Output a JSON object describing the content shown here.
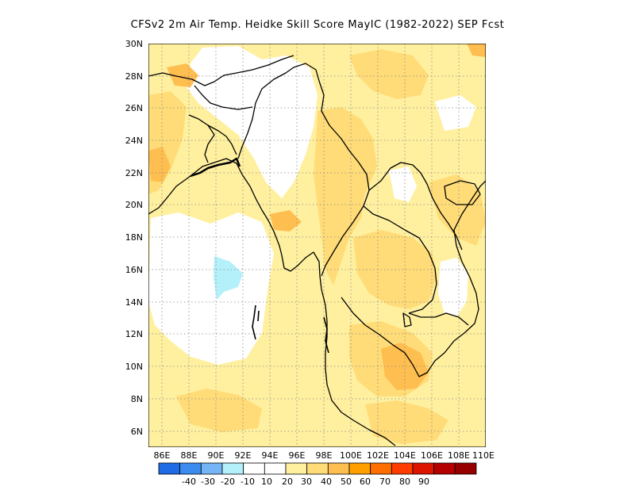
{
  "title": "CFSv2 2m Air Temp. Heidke Skill Score MayIC (1982-2022) SEP Fcst",
  "map": {
    "lon_labels": [
      "86E",
      "88E",
      "90E",
      "92E",
      "94E",
      "96E",
      "98E",
      "100E",
      "102E",
      "104E",
      "106E",
      "108E",
      "110E"
    ],
    "lat_labels": [
      "6N",
      "8N",
      "10N",
      "12N",
      "14N",
      "16N",
      "18N",
      "20N",
      "22N",
      "24N",
      "26N",
      "28N",
      "30N"
    ],
    "gridlines": "dotted"
  },
  "colorbar": {
    "colors": [
      "#1f6be6",
      "#3c8cf0",
      "#75b4f5",
      "#b4f0fa",
      "#ffffff",
      "#ffffff",
      "#fff0a0",
      "#ffdc78",
      "#ffbe50",
      "#ffa000",
      "#ff6e00",
      "#ff3c00",
      "#dc1400",
      "#b40000",
      "#960000"
    ],
    "tick_labels": [
      "-40",
      "-30",
      "-20",
      "-10",
      "10",
      "20",
      "30",
      "40",
      "50",
      "60",
      "70",
      "80",
      "90"
    ]
  }
}
